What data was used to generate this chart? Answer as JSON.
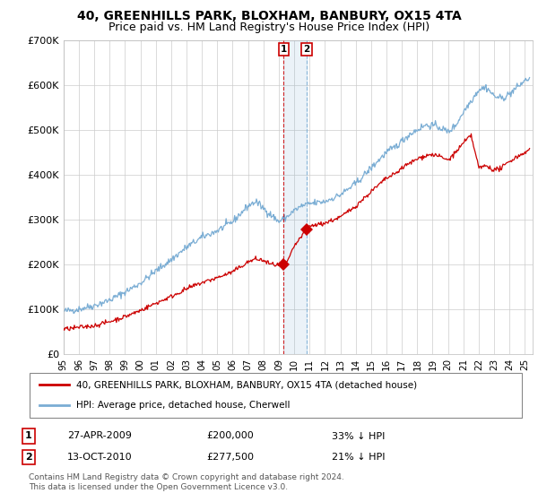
{
  "title": "40, GREENHILLS PARK, BLOXHAM, BANBURY, OX15 4TA",
  "subtitle": "Price paid vs. HM Land Registry's House Price Index (HPI)",
  "ylim": [
    0,
    700000
  ],
  "yticks": [
    0,
    100000,
    200000,
    300000,
    400000,
    500000,
    600000,
    700000
  ],
  "ytick_labels": [
    "£0",
    "£100K",
    "£200K",
    "£300K",
    "£400K",
    "£500K",
    "£600K",
    "£700K"
  ],
  "xlim_start": 1995.0,
  "xlim_end": 2025.5,
  "title_fontsize": 10,
  "subtitle_fontsize": 9,
  "legend_entry1": "40, GREENHILLS PARK, BLOXHAM, BANBURY, OX15 4TA (detached house)",
  "legend_entry2": "HPI: Average price, detached house, Cherwell",
  "sale1_date": "27-APR-2009",
  "sale1_price": "£200,000",
  "sale1_hpi": "33% ↓ HPI",
  "sale2_date": "13-OCT-2010",
  "sale2_price": "£277,500",
  "sale2_hpi": "21% ↓ HPI",
  "footer": "Contains HM Land Registry data © Crown copyright and database right 2024.\nThis data is licensed under the Open Government Licence v3.0.",
  "red_color": "#cc0000",
  "blue_color": "#7aadd4",
  "sale1_x": 2009.32,
  "sale1_y": 200000,
  "sale2_x": 2010.79,
  "sale2_y": 277500,
  "background_color": "#ffffff",
  "grid_color": "#cccccc"
}
